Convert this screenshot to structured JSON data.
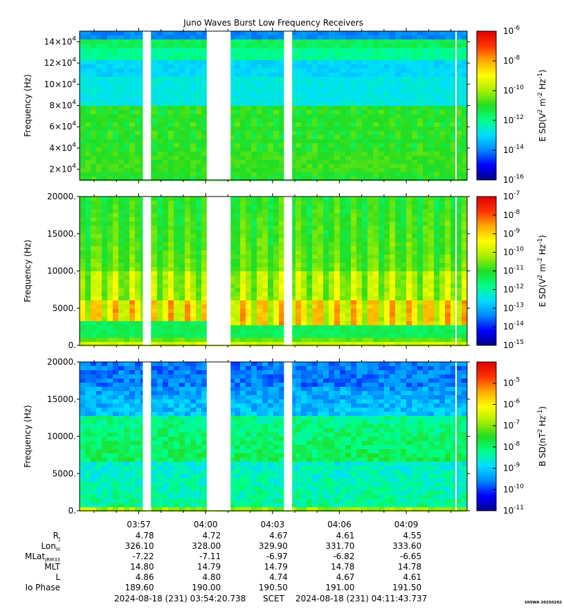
{
  "title": "Juno Waves Burst Low Frequency Receivers",
  "watermark": "UIOWA 20250202",
  "colors": {
    "background": "#ffffff",
    "gap": "#ffffff",
    "scale": [
      "#00008c",
      "#0000ff",
      "#0088ff",
      "#00ddff",
      "#00ff88",
      "#22dd22",
      "#aaee00",
      "#ffff00",
      "#ffaa00",
      "#ff3300",
      "#dd0000"
    ]
  },
  "chart_data": [
    {
      "type": "heatmap",
      "ylabel": "Frequency (Hz)",
      "ylim": [
        10000,
        150000
      ],
      "yticks": [
        {
          "value": 20000,
          "base": "2×10",
          "exp": "4"
        },
        {
          "value": 40000,
          "base": "4×10",
          "exp": "4"
        },
        {
          "value": 60000,
          "base": "6×10",
          "exp": "4"
        },
        {
          "value": 80000,
          "base": "8×10",
          "exp": "4"
        },
        {
          "value": 100000,
          "base": "10×10",
          "exp": "4"
        },
        {
          "value": 120000,
          "base": "12×10",
          "exp": "4"
        },
        {
          "value": 140000,
          "base": "14×10",
          "exp": "4"
        }
      ],
      "colorbar": {
        "label": "E SD(V² m⁻² Hz⁻¹)",
        "label_parts": [
          {
            "t": "E SD(V"
          },
          {
            "t": "2",
            "sup": true
          },
          {
            "t": " m"
          },
          {
            "t": "-2",
            "sup": true
          },
          {
            "t": " Hz"
          },
          {
            "t": "-1",
            "sup": true
          },
          {
            "t": ")"
          }
        ],
        "scale": "log",
        "range_exp": [
          -16,
          -6
        ],
        "tick_exps": [
          -6,
          -8,
          -10,
          -12,
          -14,
          -16
        ]
      }
    },
    {
      "type": "heatmap",
      "ylabel": "Frequency (Hz)",
      "ylim": [
        0,
        20000
      ],
      "yticks": [
        {
          "value": 0,
          "label": "0."
        },
        {
          "value": 5000,
          "label": "5000."
        },
        {
          "value": 10000,
          "label": "10000."
        },
        {
          "value": 15000,
          "label": "15000."
        },
        {
          "value": 20000,
          "label": "20000."
        }
      ],
      "colorbar": {
        "label": "E SD(V² m⁻² Hz⁻¹)",
        "label_parts": [
          {
            "t": "E SD(V"
          },
          {
            "t": "2",
            "sup": true
          },
          {
            "t": " m"
          },
          {
            "t": "-2",
            "sup": true
          },
          {
            "t": " Hz"
          },
          {
            "t": "-1",
            "sup": true
          },
          {
            "t": ")"
          }
        ],
        "scale": "log",
        "range_exp": [
          -15,
          -7
        ],
        "tick_exps": [
          -7,
          -8,
          -9,
          -10,
          -11,
          -12,
          -13,
          -14,
          -15
        ]
      }
    },
    {
      "type": "heatmap",
      "ylabel": "Frequency (Hz)",
      "ylim": [
        0,
        20000
      ],
      "yticks": [
        {
          "value": 0,
          "label": "0."
        },
        {
          "value": 5000,
          "label": "5000."
        },
        {
          "value": 10000,
          "label": "10000."
        },
        {
          "value": 15000,
          "label": "15000."
        },
        {
          "value": 20000,
          "label": "20000."
        }
      ],
      "colorbar": {
        "label": "B SD(nT² Hz⁻¹)",
        "label_parts": [
          {
            "t": "B SD(nT"
          },
          {
            "t": "2",
            "sup": true
          },
          {
            "t": " Hz"
          },
          {
            "t": "-1",
            "sup": true
          },
          {
            "t": ")"
          }
        ],
        "scale": "log",
        "range_exp": [
          -11,
          -4
        ],
        "tick_exps": [
          -5,
          -6,
          -7,
          -8,
          -9,
          -10,
          -11
        ]
      }
    }
  ],
  "time_axis": {
    "start": "03:54:20.738",
    "end": "04:11:43.737",
    "ticks": [
      {
        "label": "03:57",
        "time": "03:57:00"
      },
      {
        "label": "04:00",
        "time": "04:00:00"
      },
      {
        "label": "04:03",
        "time": "04:03:00"
      },
      {
        "label": "04:06",
        "time": "04:06:00"
      },
      {
        "label": "04:09",
        "time": "04:09:00"
      }
    ],
    "data_gaps": [
      [
        "03:57:11",
        "03:57:33"
      ],
      [
        "04:00:03",
        "04:01:07"
      ],
      [
        "04:03:31",
        "04:03:53"
      ],
      [
        "04:11:12",
        "04:11:16"
      ]
    ]
  },
  "ephemeris": {
    "rows": [
      {
        "label": "R",
        "sub": "J",
        "values": [
          "4.78",
          "4.72",
          "4.67",
          "4.61",
          "4.55"
        ]
      },
      {
        "label": "Lon",
        "sub": "III",
        "values": [
          "326.10",
          "328.00",
          "329.90",
          "331.70",
          "333.60"
        ]
      },
      {
        "label": "MLat",
        "sub": "JRM33",
        "values": [
          "-7.22",
          "-7.11",
          "-6.97",
          "-6.82",
          "-6.65"
        ]
      },
      {
        "label": "MLT",
        "sub": "",
        "values": [
          "14.80",
          "14.79",
          "14.79",
          "14.78",
          "14.78"
        ]
      },
      {
        "label": "L",
        "sub": "",
        "values": [
          "4.86",
          "4.80",
          "4.74",
          "4.67",
          "4.61"
        ]
      },
      {
        "label": "Io Phase",
        "sub": "",
        "values": [
          "189.60",
          "190.00",
          "190.50",
          "191.00",
          "191.50"
        ]
      }
    ]
  },
  "footer": {
    "start": "2024-08-18 (231) 03:54:20.738",
    "scet": "SCET",
    "end": "2024-08-18 (231) 04:11:43.737"
  }
}
